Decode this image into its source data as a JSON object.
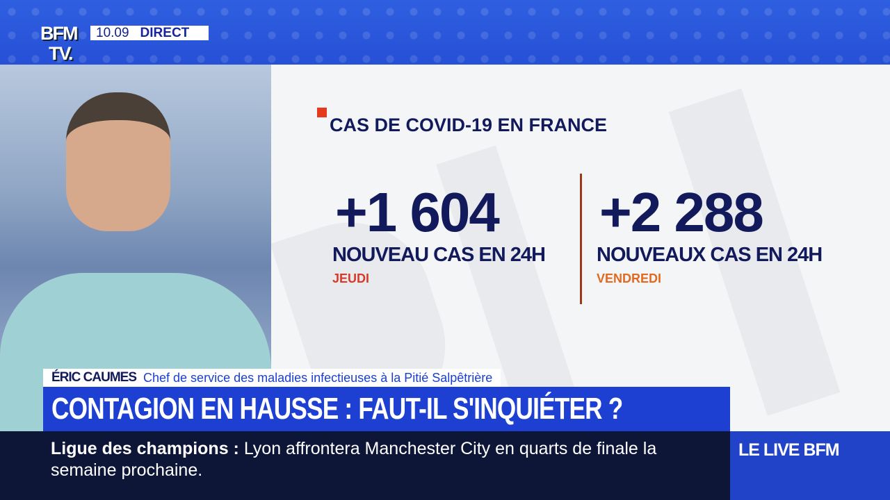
{
  "channel": {
    "logo_line1": "BFM",
    "logo_line2": "TV.",
    "time": "10.09",
    "live_label": "DIRECT"
  },
  "graphic": {
    "title": "CAS DE COVID-19 EN FRANCE",
    "stats": [
      {
        "value": "+1 604",
        "label": "NOUVEAU CAS EN 24H",
        "day": "JEUDI",
        "day_color": "#d83a2a"
      },
      {
        "value": "+2 288",
        "label": "NOUVEAUX CAS EN 24H",
        "day": "VENDREDI",
        "day_color": "#e06a20"
      }
    ],
    "accent": "#e63a1e",
    "text_color": "#121a5c"
  },
  "lower_third": {
    "name": "ÉRIC CAUMES",
    "role": "Chef de service des maladies infectieuses à la Pitié Salpêtrière",
    "headline": "CONTAGION EN HAUSSE : FAUT-IL S'INQUIÉTER ?"
  },
  "ticker": {
    "topic": "Ligue des champions  :",
    "text": "Lyon affrontera Manchester City en quarts de finale la semaine prochaine.",
    "brand": "LE LIVE BFM"
  }
}
